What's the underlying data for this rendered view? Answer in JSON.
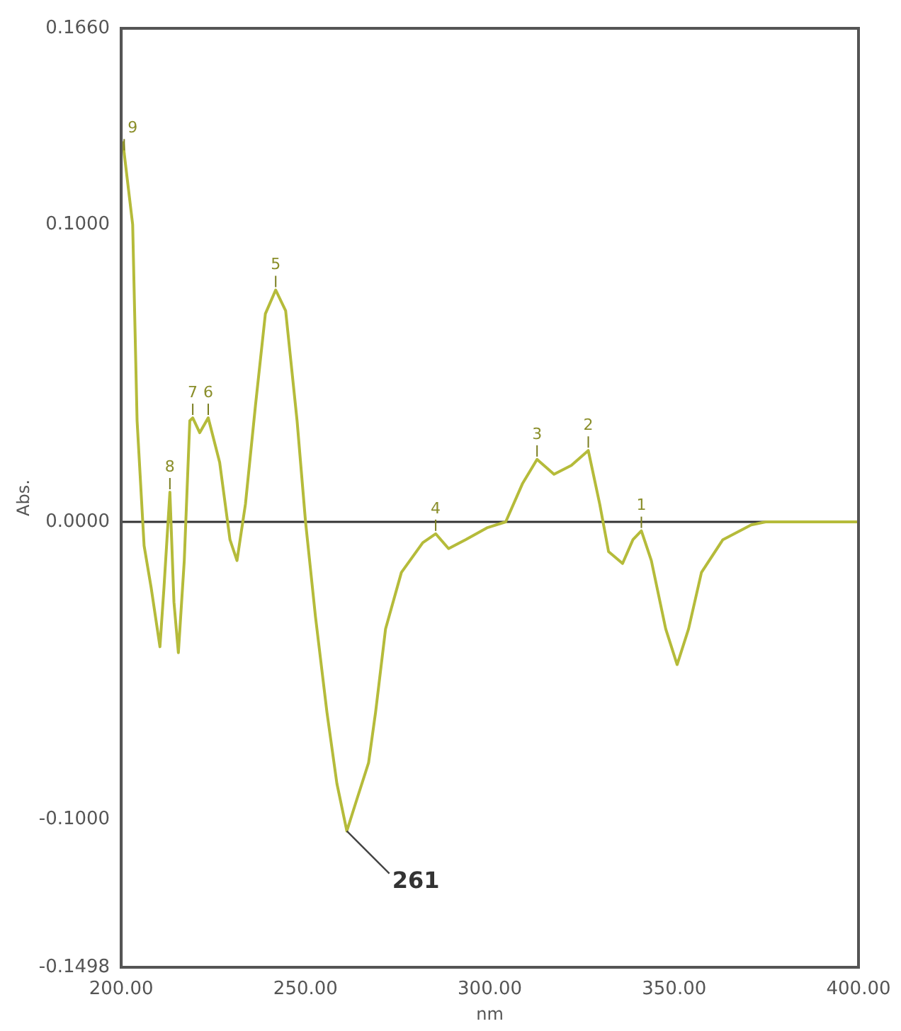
{
  "chart_data": {
    "type": "line",
    "xlabel": "nm",
    "ylabel": "Abs.",
    "xlim": [
      200,
      400
    ],
    "xticks": [
      {
        "value": 200,
        "label": "200.00"
      },
      {
        "value": 250,
        "label": "250.00"
      },
      {
        "value": 300,
        "label": "300.00"
      },
      {
        "value": 350,
        "label": "350.00"
      },
      {
        "value": 400,
        "label": "400.00"
      }
    ],
    "ylim": [
      -0.1498,
      0.166
    ],
    "yticks": [
      {
        "value": -0.1498,
        "label": "-0.1498"
      },
      {
        "value": -0.1,
        "label": "-0.1000"
      },
      {
        "value": 0,
        "label": "0.0000"
      },
      {
        "value": 0.1,
        "label": "0.1000"
      },
      {
        "value": 0.166,
        "label": "0.1660"
      }
    ],
    "grid": false,
    "legend": false,
    "marker": "none",
    "line_style": "solid",
    "ref_lines": [
      {
        "axis": "y",
        "value": 0,
        "color": "#333333"
      }
    ],
    "series": [
      {
        "color": "#b5bb3a",
        "x": [
          200.5,
          200.8,
          203.1,
          204.3,
          206.2,
          208.1,
          210.5,
          211.6,
          213.2,
          214.3,
          215.5,
          217.1,
          218.6,
          219.4,
          221.3,
          223.6,
          226.7,
          229.5,
          231.4,
          233.7,
          236.4,
          239.1,
          241.9,
          244.6,
          247.7,
          250,
          252.7,
          255.8,
          258.5,
          261.2,
          264,
          267.1,
          269,
          271.7,
          276,
          281.8,
          285.3,
          288.8,
          293.4,
          299.2,
          304.3,
          308.9,
          312.8,
          317.4,
          322.1,
          326.7,
          329.8,
          332.2,
          336,
          338.8,
          341.1,
          343.8,
          347.7,
          350.8,
          353.9,
          357.4,
          363.2,
          370.9,
          374.8,
          400
        ],
        "values": [
          0.128,
          0.124,
          0.1,
          0.034,
          -0.008,
          -0.022,
          -0.042,
          -0.022,
          0.01,
          -0.027,
          -0.044,
          -0.013,
          0.034,
          0.035,
          0.03,
          0.035,
          0.02,
          -0.006,
          -0.013,
          0.006,
          0.039,
          0.07,
          0.078,
          0.071,
          0.034,
          0,
          -0.032,
          -0.064,
          -0.088,
          -0.104,
          -0.093,
          -0.081,
          -0.064,
          -0.036,
          -0.017,
          -0.007,
          -0.004,
          -0.009,
          -0.006,
          -0.002,
          0,
          0.013,
          0.021,
          0.016,
          0.019,
          0.024,
          0.006,
          -0.01,
          -0.014,
          -0.006,
          -0.003,
          -0.013,
          -0.036,
          -0.048,
          -0.036,
          -0.017,
          -0.006,
          -0.001,
          0,
          0
        ]
      }
    ],
    "annotations": [
      {
        "text": "1",
        "x": 341.1,
        "y": -0.003
      },
      {
        "text": "2",
        "x": 326.7,
        "y": 0.024
      },
      {
        "text": "3",
        "x": 312.8,
        "y": 0.021
      },
      {
        "text": "4",
        "x": 285.3,
        "y": -0.004
      },
      {
        "text": "5",
        "x": 241.9,
        "y": 0.078
      },
      {
        "text": "6",
        "x": 223.6,
        "y": 0.035
      },
      {
        "text": "7",
        "x": 219.4,
        "y": 0.035
      },
      {
        "text": "8",
        "x": 213.2,
        "y": 0.01
      },
      {
        "text": "9",
        "x": 200.8,
        "y": 0.124
      },
      {
        "text": "261",
        "x": 261.2,
        "y": -0.104
      }
    ]
  }
}
